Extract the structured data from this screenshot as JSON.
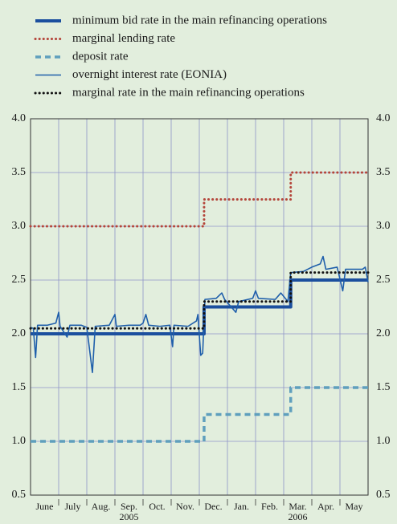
{
  "chart_data": {
    "type": "line",
    "categories": [
      "June",
      "July",
      "Aug.",
      "Sep.",
      "Oct.",
      "Nov.",
      "Dec.",
      "Jan.",
      "Feb.",
      "Mar.",
      "Apr.",
      "May"
    ],
    "years": [
      "2005",
      "2006"
    ],
    "xlim": [
      0,
      12
    ],
    "ylim": [
      0.5,
      4.0
    ],
    "yticks": [
      {
        "value": 0.5,
        "label": "0.5"
      },
      {
        "value": 1.0,
        "label": "1.0"
      },
      {
        "value": 1.5,
        "label": "1.5"
      },
      {
        "value": 2.0,
        "label": "2.0"
      },
      {
        "value": 2.5,
        "label": "2.5"
      },
      {
        "value": 3.0,
        "label": "3.0"
      },
      {
        "value": 3.5,
        "label": "3.5"
      },
      {
        "value": 4.0,
        "label": "4.0"
      }
    ],
    "grid": true,
    "series": [
      {
        "name": "minimum bid rate in the main refinancing operations",
        "color": "#1b4f9e",
        "style": "solid",
        "width": 4,
        "x": [
          0,
          6.17,
          6.17,
          9.25,
          9.25,
          12
        ],
        "values": [
          2.0,
          2.0,
          2.25,
          2.25,
          2.5,
          2.5
        ]
      },
      {
        "name": "marginal lending rate",
        "color": "#b4453a",
        "style": "dotted",
        "width": 3,
        "x": [
          0,
          6.17,
          6.17,
          9.25,
          9.25,
          12
        ],
        "values": [
          3.0,
          3.0,
          3.25,
          3.25,
          3.5,
          3.5
        ]
      },
      {
        "name": "deposit rate",
        "color": "#5f9fbd",
        "style": "dashed",
        "width": 3.5,
        "x": [
          0,
          6.17,
          6.17,
          9.25,
          9.25,
          12
        ],
        "values": [
          1.0,
          1.0,
          1.25,
          1.25,
          1.5,
          1.5
        ]
      },
      {
        "name": "overnight interest rate (EONIA)",
        "color": "#1f5fab",
        "style": "solid",
        "width": 1.6,
        "x": [
          0,
          0.1,
          0.18,
          0.25,
          0.6,
          0.9,
          1.0,
          1.05,
          1.3,
          1.4,
          1.8,
          2.0,
          2.2,
          2.3,
          2.8,
          3.0,
          3.05,
          3.5,
          3.9,
          4.0,
          4.1,
          4.2,
          4.6,
          4.95,
          5.05,
          5.1,
          5.6,
          5.9,
          5.95,
          6.05,
          6.12,
          6.2,
          6.6,
          6.8,
          6.9,
          7.3,
          7.4,
          7.9,
          8.0,
          8.1,
          8.7,
          8.9,
          9.15,
          9.25,
          9.7,
          10.0,
          10.3,
          10.4,
          10.5,
          10.9,
          11.1,
          11.2,
          11.8,
          11.9,
          12.0
        ],
        "values": [
          2.06,
          2.05,
          1.78,
          2.08,
          2.08,
          2.1,
          2.2,
          2.07,
          1.97,
          2.08,
          2.08,
          2.06,
          1.64,
          2.07,
          2.08,
          2.18,
          2.07,
          2.08,
          2.08,
          2.1,
          2.18,
          2.08,
          2.07,
          2.08,
          1.88,
          2.08,
          2.07,
          2.12,
          2.18,
          1.8,
          1.82,
          2.32,
          2.33,
          2.38,
          2.32,
          2.2,
          2.3,
          2.33,
          2.4,
          2.33,
          2.32,
          2.38,
          2.3,
          2.57,
          2.58,
          2.62,
          2.65,
          2.72,
          2.6,
          2.62,
          2.4,
          2.6,
          2.6,
          2.62,
          2.48
        ]
      },
      {
        "name": "marginal rate in the main refinancing operations",
        "color": "#111111",
        "style": "dotted",
        "width": 3,
        "x": [
          0,
          6.17,
          6.17,
          9.25,
          9.25,
          12
        ],
        "values": [
          2.05,
          2.05,
          2.3,
          2.3,
          2.57,
          2.57
        ]
      }
    ]
  }
}
